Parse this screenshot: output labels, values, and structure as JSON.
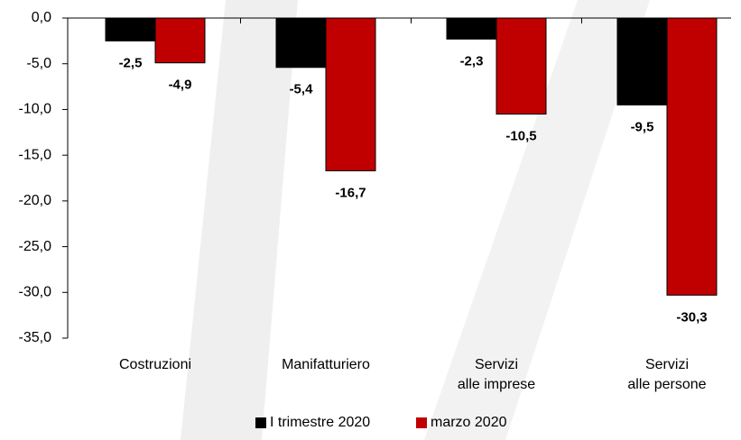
{
  "chart_data": {
    "type": "bar",
    "categories": [
      "Costruzioni",
      "Manifatturiero",
      "Servizi\nalle imprese",
      "Servizi\nalle persone"
    ],
    "series": [
      {
        "name": "I trimestre 2020",
        "color": "#000000",
        "values": [
          -2.5,
          -5.4,
          -2.3,
          -9.5
        ],
        "value_labels": [
          "-2,5",
          "-5,4",
          "-2,3",
          "-9,5"
        ]
      },
      {
        "name": "marzo 2020",
        "color": "#c00000",
        "values": [
          -4.9,
          -16.7,
          -10.5,
          -30.3
        ],
        "value_labels": [
          "-4,9",
          "-16,7",
          "-10,5",
          "-30,3"
        ]
      }
    ],
    "ylim": [
      -35,
      0
    ],
    "yticks": [
      {
        "value": 0,
        "label": "0,0"
      },
      {
        "value": -5,
        "label": "-5,0"
      },
      {
        "value": -10,
        "label": "-10,0"
      },
      {
        "value": -15,
        "label": "-15,0"
      },
      {
        "value": -20,
        "label": "-20,0"
      },
      {
        "value": -25,
        "label": "-25,0"
      },
      {
        "value": -30,
        "label": "-30,0"
      },
      {
        "value": -35,
        "label": "-35,0"
      }
    ],
    "legend": "bottom"
  }
}
